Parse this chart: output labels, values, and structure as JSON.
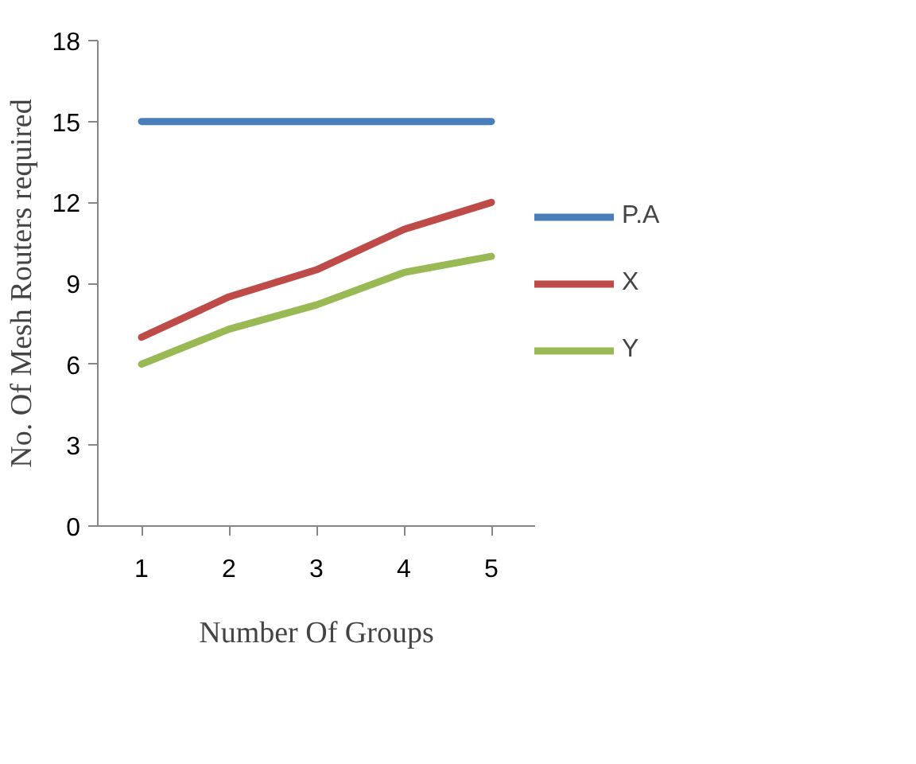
{
  "chart_data": {
    "type": "line",
    "xlabel": "Number Of Groups",
    "ylabel": "No. Of Mesh Routers required",
    "categories": [
      "1",
      "2",
      "3",
      "4",
      "5"
    ],
    "series": [
      {
        "name": "P.A",
        "color": "#4a7ebb",
        "values": [
          15,
          15,
          15,
          15,
          15
        ]
      },
      {
        "name": "X",
        "color": "#be4b48",
        "values": [
          7,
          8.5,
          9.5,
          11,
          12
        ]
      },
      {
        "name": "Y",
        "color": "#98b954",
        "values": [
          6,
          7.3,
          8.2,
          9.4,
          10
        ]
      }
    ],
    "ylim": [
      0,
      18
    ],
    "yticks": [
      0,
      3,
      6,
      9,
      12,
      15,
      18
    ],
    "grid": false,
    "legend": "right",
    "marker": "none",
    "line_style": "solid"
  }
}
